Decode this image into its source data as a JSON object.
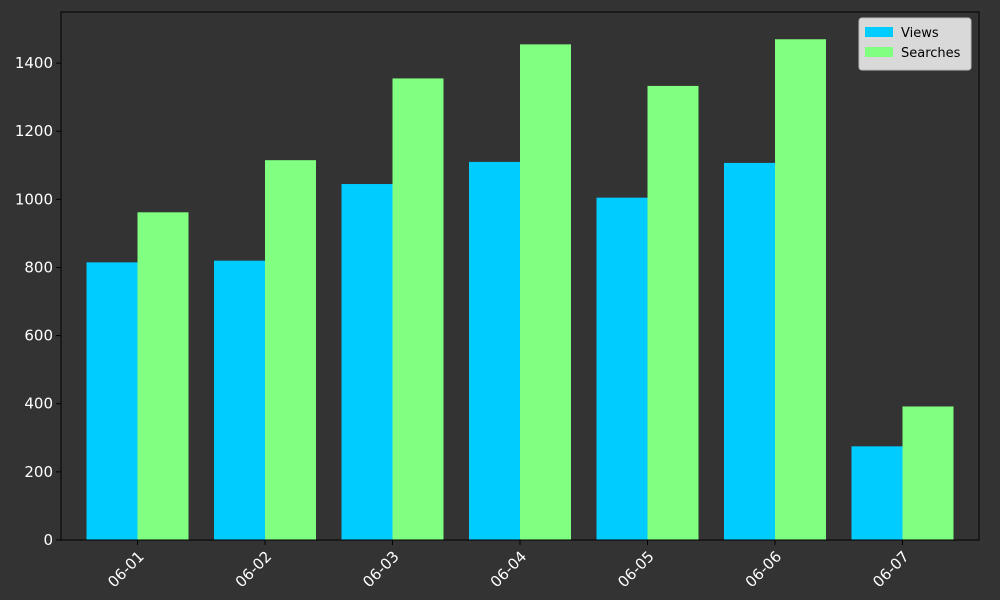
{
  "colors": {
    "background": "#333333",
    "axis": "#000000",
    "tick_text": "#ffffff",
    "legend_bg": "#d9d9d9",
    "legend_border": "#bdbdbd"
  },
  "chart_data": {
    "type": "bar",
    "categories": [
      "06-01",
      "06-02",
      "06-03",
      "06-04",
      "06-05",
      "06-06",
      "06-07"
    ],
    "series": [
      {
        "name": "Views",
        "color": "#00ccff",
        "values": [
          815,
          820,
          1045,
          1110,
          1005,
          1107,
          275
        ]
      },
      {
        "name": "Searches",
        "color": "#80ff80",
        "values": [
          962,
          1115,
          1355,
          1455,
          1333,
          1470,
          392
        ]
      }
    ],
    "title": "",
    "xlabel": "",
    "ylabel": "",
    "ylim": [
      0,
      1550
    ],
    "yticks": [
      0,
      200,
      400,
      600,
      800,
      1000,
      1200,
      1400
    ],
    "grid": false,
    "legend_position": "top-right"
  }
}
